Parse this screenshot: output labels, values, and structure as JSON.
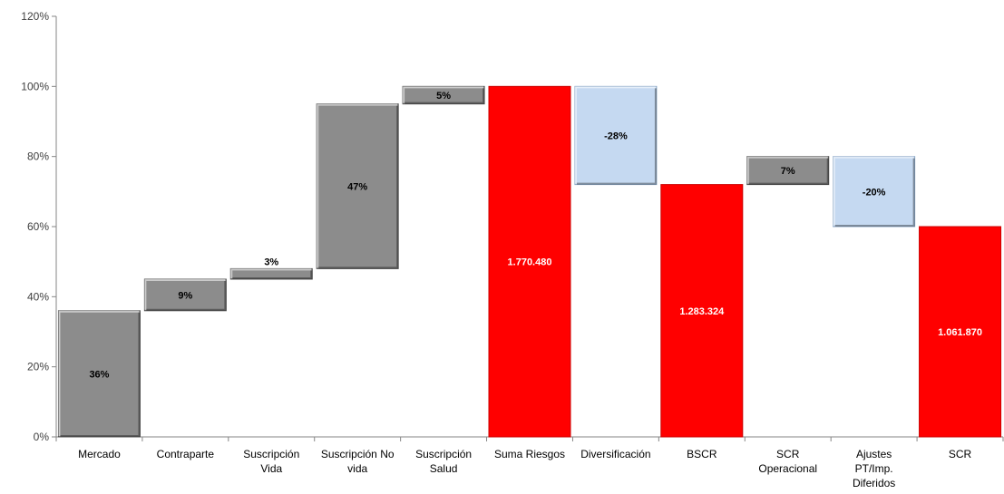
{
  "chart_data": {
    "type": "bar",
    "subtype": "waterfall",
    "title": "",
    "xlabel": "",
    "ylabel": "",
    "ylim": [
      0,
      120
    ],
    "yticks": [
      "0%",
      "20%",
      "40%",
      "60%",
      "80%",
      "100%",
      "120%"
    ],
    "grid": false,
    "legend": "none",
    "categories": [
      [
        "Mercado"
      ],
      [
        "Contraparte"
      ],
      [
        "Suscripción",
        "Vida"
      ],
      [
        "Suscripción No",
        "vida"
      ],
      [
        "Suscripción",
        "Salud"
      ],
      [
        "Suma Riesgos"
      ],
      [
        "Diversificación"
      ],
      [
        "BSCR"
      ],
      [
        "SCR",
        "Operacional"
      ],
      [
        "Ajustes",
        "PT/Imp.",
        "Diferidos"
      ],
      [
        "SCR"
      ]
    ],
    "bars": [
      {
        "base": 0,
        "top": 36,
        "label": "36%",
        "kind": "component"
      },
      {
        "base": 36,
        "top": 45,
        "label": "9%",
        "kind": "component"
      },
      {
        "base": 45,
        "top": 48,
        "label": "3%",
        "kind": "component"
      },
      {
        "base": 48,
        "top": 95,
        "label": "47%",
        "kind": "component"
      },
      {
        "base": 95,
        "top": 100,
        "label": "5%",
        "kind": "component"
      },
      {
        "base": 0,
        "top": 100,
        "label": "1.770.480",
        "kind": "total"
      },
      {
        "base": 72,
        "top": 100,
        "label": "-28%",
        "kind": "reduction"
      },
      {
        "base": 0,
        "top": 72,
        "label": "1.283.324",
        "kind": "total"
      },
      {
        "base": 72,
        "top": 80,
        "label": "7%",
        "kind": "component"
      },
      {
        "base": 60,
        "top": 80,
        "label": "-20%",
        "kind": "reduction"
      },
      {
        "base": 0,
        "top": 60,
        "label": "1.061.870",
        "kind": "total"
      }
    ],
    "colors": {
      "component": "#8c8c8c",
      "component_edge": "#555555",
      "total": "#ff0000",
      "total_edge": "#cc0000",
      "reduction": "#c5d9f1",
      "reduction_edge": "#8ea9c8",
      "axis": "#868686"
    }
  }
}
